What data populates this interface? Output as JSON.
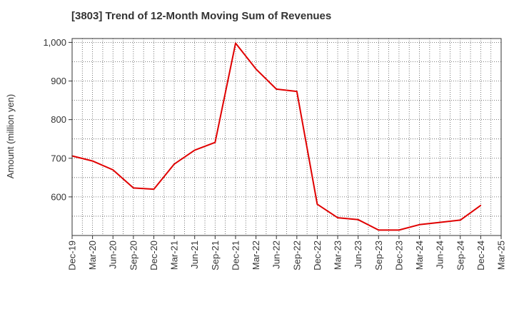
{
  "title": "[3803]  Trend of 12-Month Moving Sum of Revenues",
  "chart_data": {
    "type": "line",
    "title": "[3803]  Trend of 12-Month Moving Sum of Revenues",
    "xlabel": "",
    "ylabel": "Amount (million yen)",
    "ylim": [
      500,
      1010
    ],
    "yticks": [
      600,
      700,
      800,
      900,
      1000
    ],
    "ytick_labels": [
      "600",
      "700",
      "800",
      "900",
      "1,000"
    ],
    "categories": [
      "Dec-19",
      "Mar-20",
      "Jun-20",
      "Sep-20",
      "Dec-20",
      "Mar-21",
      "Jun-21",
      "Sep-21",
      "Dec-21",
      "Mar-22",
      "Jun-22",
      "Sep-22",
      "Dec-22",
      "Mar-23",
      "Jun-23",
      "Sep-23",
      "Dec-23",
      "Mar-24",
      "Jun-24",
      "Sep-24",
      "Dec-24",
      "Mar-25"
    ],
    "grid": true,
    "series": [
      {
        "color": "#e00000",
        "values": [
          706,
          693,
          670,
          623,
          620,
          685,
          721,
          741,
          998,
          931,
          879,
          873,
          581,
          546,
          541,
          514,
          514,
          528,
          534,
          540,
          578,
          null
        ]
      }
    ]
  }
}
